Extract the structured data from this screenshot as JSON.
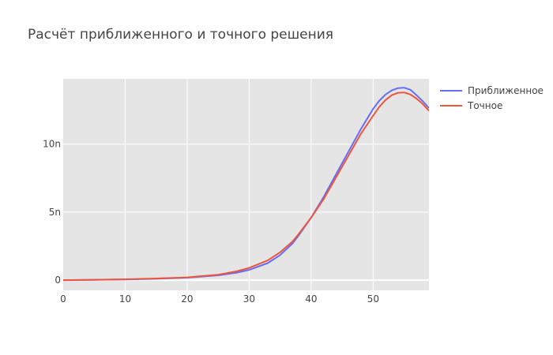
{
  "chart_data": {
    "type": "line",
    "title": "Расчёт приближенного и точного решения",
    "xlabel": "",
    "ylabel": "",
    "xlim": [
      0,
      59
    ],
    "ylim": [
      -0.75,
      14.8
    ],
    "x_ticks": [
      0,
      10,
      20,
      30,
      40,
      50
    ],
    "x_tick_labels": [
      "0",
      "10",
      "20",
      "30",
      "40",
      "50"
    ],
    "y_ticks": [
      0,
      5,
      10
    ],
    "y_tick_labels": [
      "0",
      "5n",
      "10n"
    ],
    "grid": true,
    "legend_position": "top-right",
    "x": [
      0,
      5,
      10,
      15,
      20,
      25,
      28,
      30,
      33,
      35,
      37,
      38,
      40,
      42,
      45,
      48,
      50,
      51,
      52,
      53,
      54,
      55,
      56,
      57,
      58,
      59
    ],
    "series": [
      {
        "name": "Приближенное",
        "color": "#636efa",
        "values": [
          0.0,
          0.02,
          0.05,
          0.1,
          0.18,
          0.35,
          0.55,
          0.75,
          1.25,
          1.85,
          2.7,
          3.3,
          4.6,
          6.1,
          8.6,
          11.1,
          12.6,
          13.2,
          13.65,
          13.95,
          14.12,
          14.15,
          14.0,
          13.6,
          13.15,
          12.65
        ]
      },
      {
        "name": "Точное",
        "color": "#ef553b",
        "values": [
          0.0,
          0.03,
          0.06,
          0.12,
          0.2,
          0.4,
          0.65,
          0.9,
          1.45,
          2.05,
          2.85,
          3.4,
          4.6,
          5.95,
          8.35,
          10.75,
          12.1,
          12.75,
          13.25,
          13.6,
          13.78,
          13.8,
          13.65,
          13.35,
          12.95,
          12.45
        ]
      }
    ]
  }
}
